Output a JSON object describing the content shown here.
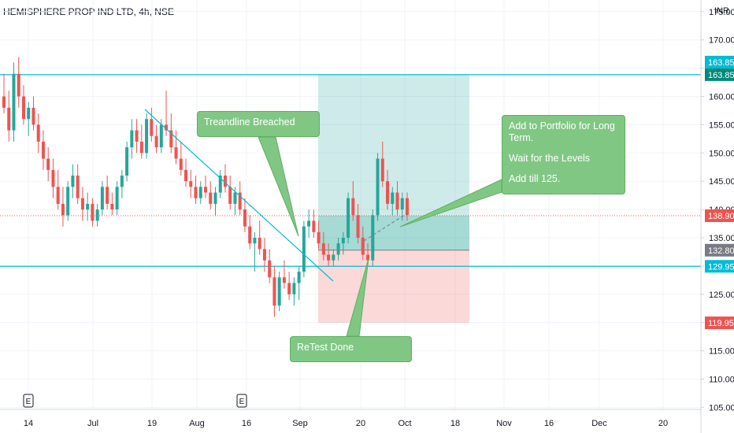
{
  "header": {
    "symbol_title": "HEMISPHERE PROP IND LTD, 4h, NSE",
    "currency": "INR"
  },
  "chart_data": {
    "type": "candlestick",
    "symbol": "HEMISPHERE PROP IND LTD",
    "timeframe": "4h",
    "exchange": "NSE",
    "y_ticks": [
      105,
      110,
      115,
      120,
      125,
      130,
      135,
      140,
      145,
      150,
      155,
      160,
      165,
      170,
      175
    ],
    "y_tick_labels": [
      "105.00",
      "110.00",
      "115.00",
      "120.00",
      "125.00",
      "130.00",
      "135.00",
      "140.00",
      "145.00",
      "150.00",
      "155.00",
      "160.00",
      "165.00",
      "170.00",
      "175.00"
    ],
    "ylim": [
      104,
      179
    ],
    "x_tick_labels": [
      "14",
      "Jul",
      "19",
      "Aug",
      "16",
      "Sep",
      "20",
      "Oct",
      "18",
      "Nov",
      "16",
      "Dec",
      "20"
    ],
    "price_tags": [
      {
        "label": "163.85",
        "value": 163.85,
        "color": "#00bcd4",
        "offset": -1
      },
      {
        "label": "163.85",
        "value": 163.85,
        "color": "#00897b",
        "offset": 0
      },
      {
        "label": "138.90",
        "value": 138.9,
        "color": "#ef5350",
        "offset": 0
      },
      {
        "label": "132.80",
        "value": 132.8,
        "color": "#787b86",
        "offset": 0
      },
      {
        "label": "129.95",
        "value": 129.95,
        "color": "#00bcd4",
        "offset": 0
      },
      {
        "label": "119.95",
        "value": 119.95,
        "color": "#ef5350",
        "offset": 0
      }
    ],
    "horizontal_levels": [
      163.85,
      129.95
    ],
    "last_price": 138.9,
    "position": {
      "entry": 132.8,
      "target": 163.85,
      "stop": 119.95
    },
    "candles": [
      [
        160,
        164,
        157,
        158
      ],
      [
        158,
        161,
        152,
        154
      ],
      [
        154,
        166,
        152,
        164
      ],
      [
        164,
        167,
        158,
        160
      ],
      [
        160,
        162,
        155,
        156
      ],
      [
        156,
        159,
        153,
        158
      ],
      [
        158,
        160,
        154,
        155
      ],
      [
        155,
        157,
        150,
        152
      ],
      [
        152,
        154,
        147,
        149
      ],
      [
        149,
        151,
        145,
        147
      ],
      [
        147,
        149,
        142,
        144
      ],
      [
        144,
        147,
        140,
        141
      ],
      [
        141,
        144,
        137,
        139
      ],
      [
        139,
        145,
        138,
        144
      ],
      [
        144,
        148,
        142,
        146
      ],
      [
        146,
        148,
        141,
        142
      ],
      [
        142,
        144,
        138,
        140
      ],
      [
        140,
        143,
        138,
        141
      ],
      [
        141,
        142,
        137,
        138
      ],
      [
        138,
        141,
        137,
        140
      ],
      [
        140,
        145,
        139,
        144
      ],
      [
        144,
        146,
        140,
        141
      ],
      [
        141,
        143,
        139,
        140
      ],
      [
        140,
        145,
        139,
        144
      ],
      [
        144,
        147,
        142,
        146
      ],
      [
        146,
        152,
        145,
        151
      ],
      [
        151,
        156,
        149,
        154
      ],
      [
        154,
        156,
        150,
        152
      ],
      [
        152,
        155,
        149,
        150
      ],
      [
        150,
        157,
        149,
        156
      ],
      [
        156,
        158,
        152,
        153
      ],
      [
        153,
        155,
        150,
        151
      ],
      [
        151,
        156,
        150,
        155
      ],
      [
        155,
        161,
        153,
        154
      ],
      [
        154,
        157,
        150,
        151
      ],
      [
        151,
        154,
        148,
        149
      ],
      [
        149,
        152,
        146,
        147
      ],
      [
        147,
        149,
        144,
        145
      ],
      [
        145,
        147,
        142,
        144
      ],
      [
        144,
        146,
        141,
        142
      ],
      [
        142,
        145,
        141,
        144
      ],
      [
        144,
        146,
        142,
        143
      ],
      [
        143,
        145,
        140,
        141
      ],
      [
        141,
        144,
        139,
        143
      ],
      [
        143,
        147,
        142,
        146
      ],
      [
        146,
        148,
        143,
        144
      ],
      [
        144,
        146,
        140,
        141
      ],
      [
        141,
        144,
        139,
        143
      ],
      [
        143,
        145,
        139,
        140
      ],
      [
        140,
        142,
        136,
        137
      ],
      [
        137,
        139,
        133,
        134
      ],
      [
        134,
        136,
        129,
        135
      ],
      [
        135,
        138,
        132,
        133
      ],
      [
        133,
        135,
        129,
        131
      ],
      [
        131,
        133,
        127,
        128
      ],
      [
        128,
        130,
        121,
        123
      ],
      [
        123,
        129,
        122,
        128
      ],
      [
        128,
        131,
        126,
        127
      ],
      [
        127,
        129,
        124,
        125
      ],
      [
        125,
        128,
        123,
        127
      ],
      [
        127,
        130,
        124,
        129
      ],
      [
        129,
        138,
        128,
        137
      ],
      [
        137,
        140,
        135,
        138
      ],
      [
        138,
        140,
        135,
        136
      ],
      [
        136,
        138,
        133,
        134
      ],
      [
        134,
        136,
        131,
        132
      ],
      [
        132,
        134,
        130,
        131
      ],
      [
        131,
        133,
        130,
        132
      ],
      [
        132,
        135,
        131,
        134
      ],
      [
        134,
        136,
        132,
        135
      ],
      [
        135,
        143,
        134,
        142
      ],
      [
        142,
        145,
        138,
        139
      ],
      [
        139,
        141,
        134,
        135
      ],
      [
        135,
        137,
        131,
        132
      ],
      [
        132,
        134,
        130,
        131
      ],
      [
        131,
        140,
        130,
        139
      ],
      [
        139,
        150,
        138,
        149
      ],
      [
        149,
        152,
        144,
        145
      ],
      [
        145,
        147,
        140,
        141
      ],
      [
        141,
        144,
        139,
        143
      ],
      [
        143,
        145,
        139,
        140
      ],
      [
        140,
        143,
        138,
        142
      ],
      [
        142,
        143,
        138,
        139
      ]
    ],
    "annotations": [
      {
        "text": "Treandline Breached"
      },
      {
        "text_lines": [
          "Add to Portfolio for Long Term.",
          "Wait for the Levels",
          "Add till 125."
        ]
      },
      {
        "text": "ReTest Done"
      }
    ],
    "event_markers": [
      "E",
      "E"
    ],
    "colors": {
      "up": "#26a69a",
      "down": "#ef5350",
      "level_line": "#00bcd4",
      "profit_zone": "rgba(38,166,154,0.22)",
      "loss_zone": "rgba(239,83,80,0.22)",
      "callout_bg": "#81c784"
    }
  }
}
